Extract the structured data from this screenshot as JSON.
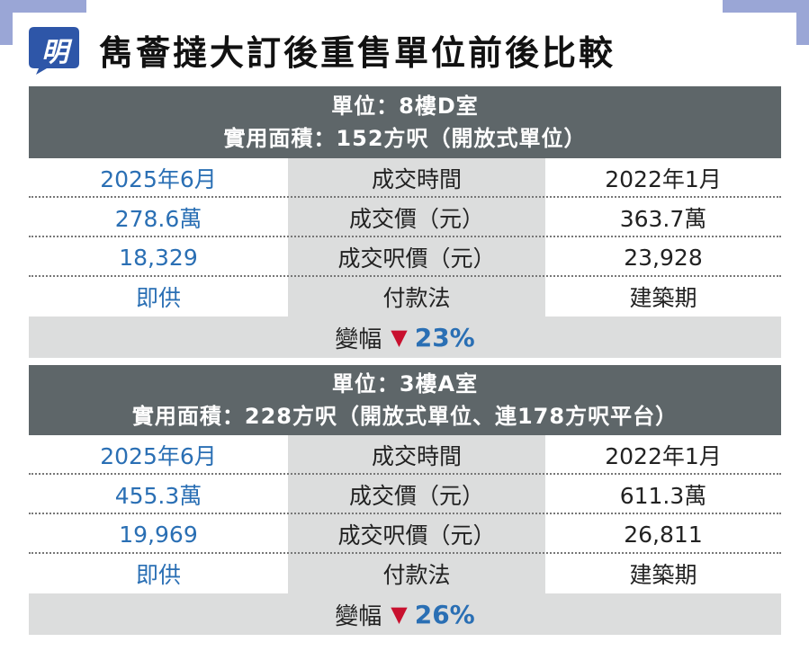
{
  "header": {
    "logo_char": "明",
    "title": "雋薈撻大訂後重售單位前後比較"
  },
  "blocks": [
    {
      "unit_line": "單位：8樓D室",
      "area_line": "實用面積：152方呎（開放式單位）",
      "rows": [
        {
          "left": "2025年6月",
          "label": "成交時間",
          "right": "2022年1月"
        },
        {
          "left": "278.6萬",
          "label": "成交價（元）",
          "right": "363.7萬"
        },
        {
          "left": "18,329",
          "label": "成交呎價（元）",
          "right": "23,928"
        },
        {
          "left": "即供",
          "label": "付款法",
          "right": "建築期"
        }
      ],
      "change_label": "變幅",
      "change_arrow": "▼",
      "change_value": "23%"
    },
    {
      "unit_line": "單位：3樓A室",
      "area_line": "實用面積：228方呎（開放式單位、連178方呎平台）",
      "rows": [
        {
          "left": "2025年6月",
          "label": "成交時間",
          "right": "2022年1月"
        },
        {
          "left": "455.3萬",
          "label": "成交價（元）",
          "right": "611.3萬"
        },
        {
          "left": "19,969",
          "label": "成交呎價（元）",
          "right": "26,811"
        },
        {
          "left": "即供",
          "label": "付款法",
          "right": "建築期"
        }
      ],
      "change_label": "變幅",
      "change_arrow": "▼",
      "change_value": "26%"
    }
  ],
  "colors": {
    "header_bg": "#5e6669",
    "label_bg": "#dcdddd",
    "accent_blue": "#2a6fb4",
    "down_red": "#c8102e",
    "logo_blue": "#2e56a8"
  }
}
